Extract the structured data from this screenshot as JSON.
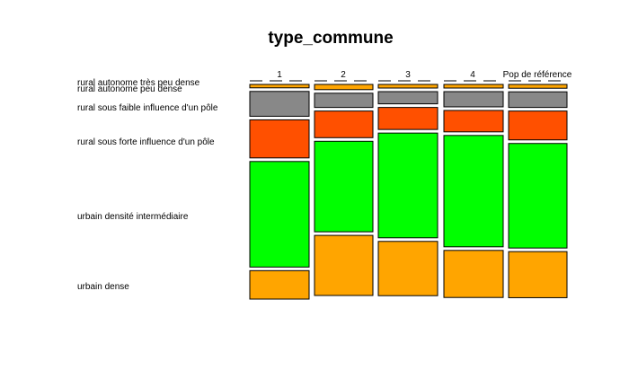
{
  "chart_data": {
    "type": "mosaic",
    "title": "type_commune",
    "columns": [
      "1",
      "2",
      "3",
      "4",
      "Pop de référence"
    ],
    "categories": [
      "rural autonome très peu dense",
      "rural autonome peu dense",
      "rural sous faible influence d'un pôle",
      "rural sous forte influence d'un pôle",
      "urbain densité intermédiaire",
      "urbain dense"
    ],
    "colors": [
      "#ffffff",
      "#ffa500",
      "#888888",
      "#ff5000",
      "#00ff00",
      "#ffa500"
    ],
    "values": [
      [
        0.0,
        0.017,
        0.124,
        0.19,
        0.527,
        0.142
      ],
      [
        0.0,
        0.026,
        0.071,
        0.133,
        0.452,
        0.3
      ],
      [
        0.0,
        0.018,
        0.061,
        0.11,
        0.523,
        0.271
      ],
      [
        0.0,
        0.018,
        0.076,
        0.107,
        0.556,
        0.235
      ],
      [
        0.0,
        0.019,
        0.078,
        0.144,
        0.522,
        0.23
      ]
    ]
  }
}
